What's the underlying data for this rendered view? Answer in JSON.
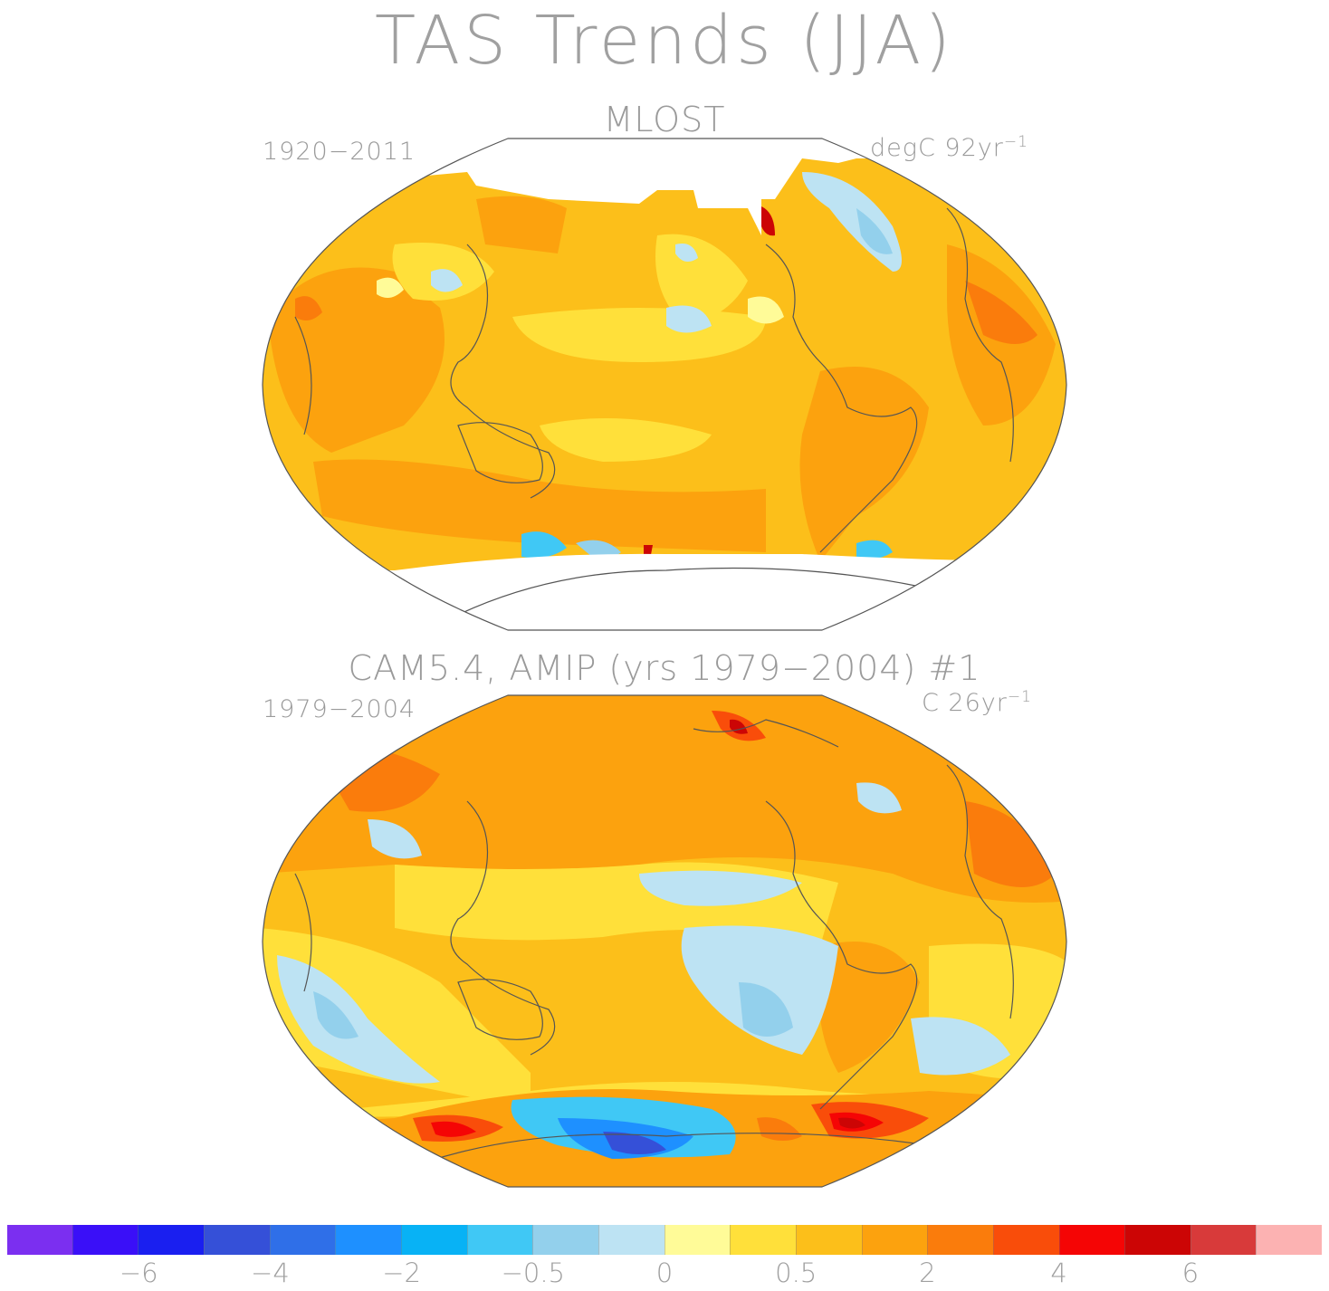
{
  "title": "TAS Trends (JJA)",
  "maps": [
    {
      "title": "MLOST",
      "period": "1920−2011",
      "units": "degC 92yr",
      "units_exp": "−1"
    },
    {
      "title": "CAM5.4, AMIP (yrs 1979−2004)      #1",
      "period": "1979−2004",
      "units": "C 26yr",
      "units_exp": "−1"
    }
  ],
  "colorbar": {
    "colors": [
      "#7b2ff0",
      "#3a0ff8",
      "#1a1ff0",
      "#3550d8",
      "#2f6fe8",
      "#1e90ff",
      "#08b2f5",
      "#40c8f5",
      "#93d0ec",
      "#bde3f3",
      "#fffb98",
      "#ffe03a",
      "#fcbf1a",
      "#fca20e",
      "#fa7c0c",
      "#f94d0a",
      "#f50505",
      "#cc0505",
      "#d83a3a",
      "#fcb2b2"
    ],
    "tick_labels": [
      "−6",
      "−4",
      "−2",
      "−0.5",
      "0",
      "0.5",
      "2",
      "4",
      "6"
    ]
  }
}
